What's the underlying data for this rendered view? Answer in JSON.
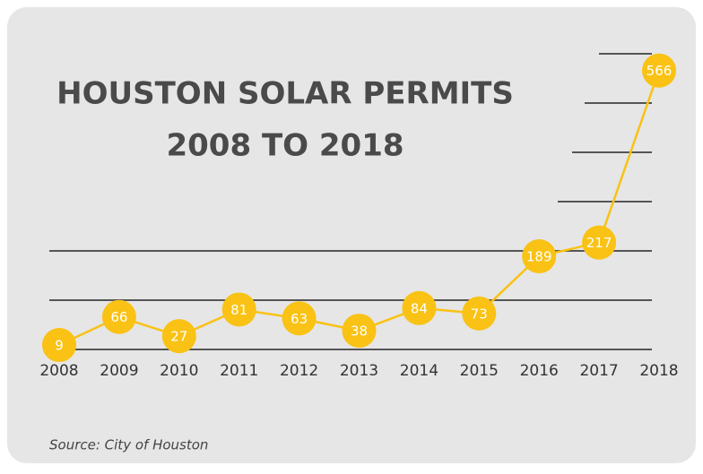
{
  "chart_data": {
    "type": "line",
    "title": "HOUSTON SOLAR PERMITS",
    "subtitle": "2008 TO 2018",
    "categories": [
      "2008",
      "2009",
      "2010",
      "2011",
      "2012",
      "2013",
      "2014",
      "2015",
      "2016",
      "2017",
      "2018"
    ],
    "values": [
      9,
      66,
      27,
      81,
      63,
      38,
      84,
      73,
      189,
      217,
      566
    ],
    "color": "#f9c214",
    "ylim": [
      0,
      600
    ],
    "yticks": [
      0,
      100,
      200,
      300,
      400,
      500,
      600
    ],
    "grid": true,
    "source": "Source: City of Houston"
  }
}
